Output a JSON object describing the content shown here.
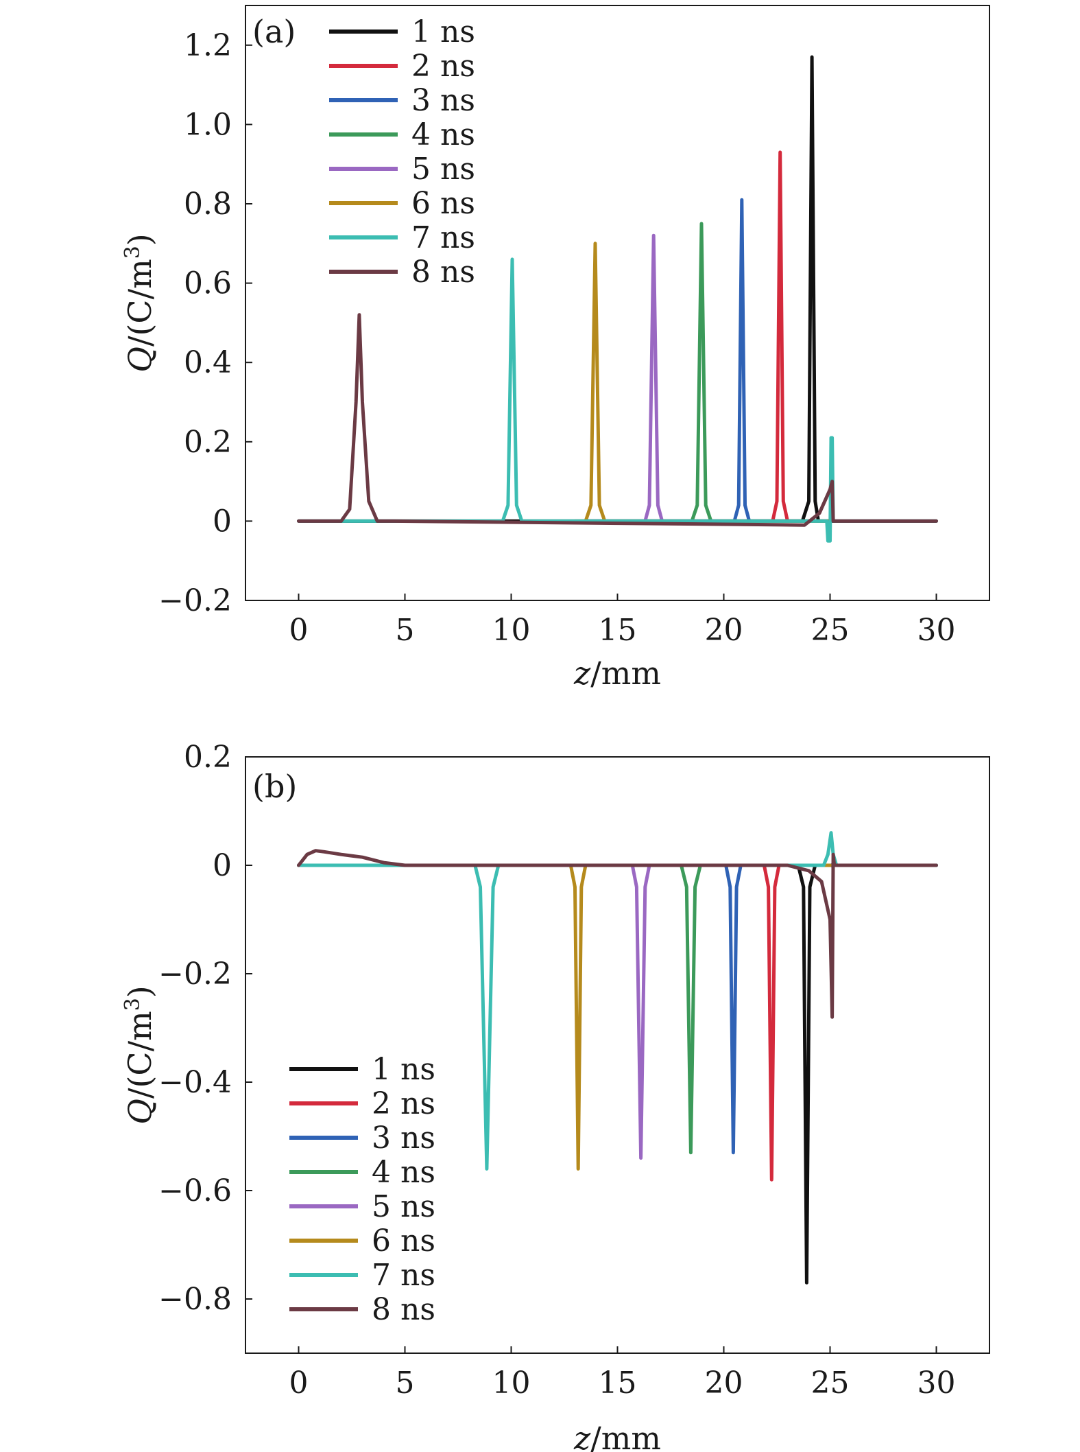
{
  "chart_data": [
    {
      "type": "line",
      "panel_label": "(a)",
      "xlabel_italic": "z",
      "xlabel_rest": "/mm",
      "ylabel_italic": "Q",
      "ylabel_rest": "/(C/m",
      "ylabel_sup": "3",
      "ylabel_close": ")",
      "xlim": [
        -2.5,
        32.5
      ],
      "ylim": [
        -0.2,
        1.3
      ],
      "x_ticks": [
        0,
        5,
        10,
        15,
        20,
        25,
        30
      ],
      "y_ticks": [
        -0.2,
        0,
        0.2,
        0.4,
        0.6,
        0.8,
        1.0,
        1.2
      ],
      "x_tick_labels": [
        "0",
        "5",
        "10",
        "15",
        "20",
        "25",
        "30"
      ],
      "y_tick_labels": [
        "−0.2",
        "0",
        "0.2",
        "0.4",
        "0.6",
        "0.8",
        "1.0",
        "1.2"
      ],
      "legend_position": "top-left",
      "series": [
        {
          "name": "1 ns",
          "color": "#111111",
          "x": [
            0,
            23.7,
            24.0,
            24.15,
            24.3,
            24.45,
            30
          ],
          "y": [
            0,
            0,
            0.05,
            1.17,
            0.05,
            0,
            0
          ]
        },
        {
          "name": "2 ns",
          "color": "#d42a3c",
          "x": [
            13.5,
            22.3,
            22.5,
            22.65,
            22.8,
            23.0,
            25.0
          ],
          "y": [
            0,
            0,
            0.05,
            0.93,
            0.05,
            0,
            0
          ]
        },
        {
          "name": "3 ns",
          "color": "#2f62b5",
          "x": [
            13.5,
            20.5,
            20.7,
            20.85,
            21.0,
            21.2,
            25.0
          ],
          "y": [
            0,
            0,
            0.04,
            0.81,
            0.04,
            0,
            0
          ]
        },
        {
          "name": "4 ns",
          "color": "#3c9a5a",
          "x": [
            13.5,
            18.5,
            18.75,
            18.95,
            19.15,
            19.4,
            25.0
          ],
          "y": [
            0,
            0,
            0.04,
            0.75,
            0.04,
            0,
            0
          ]
        },
        {
          "name": "5 ns",
          "color": "#9a68c2",
          "x": [
            13.5,
            16.3,
            16.5,
            16.7,
            16.9,
            17.1,
            25.0
          ],
          "y": [
            0,
            0,
            0.04,
            0.72,
            0.04,
            0,
            0
          ]
        },
        {
          "name": "6 ns",
          "color": "#b58a1c",
          "x": [
            13.0,
            13.5,
            13.75,
            13.95,
            14.15,
            14.4,
            25.0
          ],
          "y": [
            0,
            0,
            0.04,
            0.7,
            0.04,
            0,
            0
          ]
        },
        {
          "name": "7 ns",
          "color": "#3cbdb2",
          "x": [
            0,
            9.6,
            9.85,
            10.05,
            10.25,
            10.5,
            24.85,
            24.9,
            25.0,
            25.05,
            25.1,
            25.15,
            25.2,
            30
          ],
          "y": [
            0,
            0,
            0.04,
            0.66,
            0.04,
            0,
            0,
            -0.05,
            -0.05,
            0.21,
            0.21,
            0,
            0,
            0
          ]
        },
        {
          "name": "8 ns",
          "color": "#6b3a44",
          "x": [
            0,
            2.0,
            2.4,
            2.7,
            2.85,
            3.0,
            3.3,
            3.7,
            4.5,
            23.8,
            24.5,
            25.0,
            25.1,
            25.15,
            25.2,
            30
          ],
          "y": [
            0,
            0,
            0.03,
            0.3,
            0.52,
            0.3,
            0.05,
            0,
            0,
            -0.01,
            0.02,
            0.08,
            0.1,
            0,
            0,
            0
          ]
        }
      ]
    },
    {
      "type": "line",
      "panel_label": "(b)",
      "xlabel_italic": "z",
      "xlabel_rest": "/mm",
      "ylabel_italic": "Q",
      "ylabel_rest": "/(C/m",
      "ylabel_sup": "3",
      "ylabel_close": ")",
      "xlim": [
        -2.5,
        32.5
      ],
      "ylim": [
        -0.9,
        0.2
      ],
      "x_ticks": [
        0,
        5,
        10,
        15,
        20,
        25,
        30
      ],
      "y_ticks": [
        -0.8,
        -0.6,
        -0.4,
        -0.2,
        0,
        0.2
      ],
      "x_tick_labels": [
        "0",
        "5",
        "10",
        "15",
        "20",
        "25",
        "30"
      ],
      "y_tick_labels": [
        "−0.8",
        "−0.6",
        "−0.4",
        "−0.2",
        "0",
        "0.2"
      ],
      "legend_position": "lower-left",
      "series": [
        {
          "name": "1 ns",
          "color": "#111111",
          "x": [
            0,
            23.5,
            23.75,
            23.9,
            24.05,
            24.3,
            30
          ],
          "y": [
            0,
            0,
            -0.04,
            -0.77,
            -0.04,
            0,
            0
          ]
        },
        {
          "name": "2 ns",
          "color": "#d42a3c",
          "x": [
            13.5,
            21.9,
            22.1,
            22.25,
            22.4,
            22.6,
            25.0
          ],
          "y": [
            0,
            0,
            -0.04,
            -0.58,
            -0.04,
            0,
            0
          ]
        },
        {
          "name": "3 ns",
          "color": "#2f62b5",
          "x": [
            13.5,
            20.1,
            20.3,
            20.45,
            20.6,
            20.8,
            25.0
          ],
          "y": [
            0,
            0,
            -0.04,
            -0.53,
            -0.04,
            0,
            0
          ]
        },
        {
          "name": "4 ns",
          "color": "#3c9a5a",
          "x": [
            13.5,
            18.0,
            18.25,
            18.45,
            18.65,
            18.9,
            25.0
          ],
          "y": [
            0,
            0,
            -0.04,
            -0.53,
            -0.04,
            0,
            0
          ]
        },
        {
          "name": "5 ns",
          "color": "#9a68c2",
          "x": [
            13.5,
            15.7,
            15.9,
            16.1,
            16.3,
            16.5,
            25.0
          ],
          "y": [
            0,
            0,
            -0.04,
            -0.54,
            -0.04,
            0,
            0
          ]
        },
        {
          "name": "6 ns",
          "color": "#b58a1c",
          "x": [
            12.5,
            12.8,
            13.0,
            13.15,
            13.3,
            13.5,
            25.0
          ],
          "y": [
            0,
            0,
            -0.04,
            -0.56,
            -0.04,
            0,
            0
          ]
        },
        {
          "name": "7 ns",
          "color": "#3cbdb2",
          "x": [
            0,
            8.3,
            8.55,
            8.85,
            9.15,
            9.4,
            24.7,
            24.9,
            25.05,
            25.15,
            25.3,
            30
          ],
          "y": [
            0,
            0,
            -0.04,
            -0.56,
            -0.04,
            0,
            0,
            0.02,
            0.06,
            0.02,
            0,
            0
          ]
        },
        {
          "name": "8 ns",
          "color": "#6b3a44",
          "x": [
            0,
            0.4,
            0.8,
            1.2,
            2.0,
            3.0,
            4.0,
            5.0,
            23.0,
            24.0,
            24.6,
            25.0,
            25.1,
            25.15,
            25.2,
            30
          ],
          "y": [
            0,
            0.02,
            0.027,
            0.025,
            0.02,
            0.015,
            0.005,
            0,
            0,
            -0.01,
            -0.03,
            -0.1,
            -0.28,
            0.02,
            0,
            0
          ]
        }
      ]
    }
  ]
}
